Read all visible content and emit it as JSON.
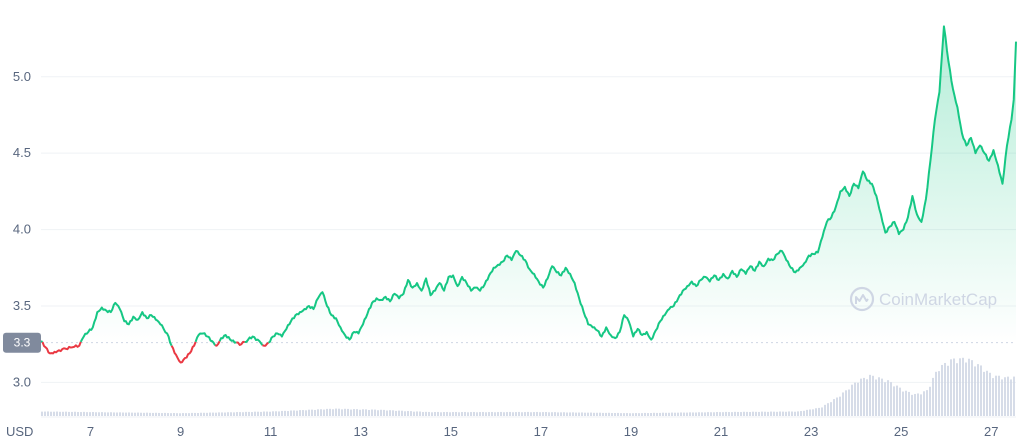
{
  "watermark": "CoinMarketCap",
  "chart_data": {
    "type": "area",
    "title": "",
    "xlabel": "",
    "ylabel": "",
    "currency_label": "USD",
    "ylim": [
      2.78,
      5.45
    ],
    "y_ticks": [
      3.0,
      3.5,
      4.0,
      4.5,
      5.0
    ],
    "x_range": [
      5.9,
      27.55
    ],
    "x_ticks": [
      {
        "day": 7,
        "label": "7"
      },
      {
        "day": 9,
        "label": "9"
      },
      {
        "day": 11,
        "label": "11"
      },
      {
        "day": 13,
        "label": "13"
      },
      {
        "day": 15,
        "label": "15"
      },
      {
        "day": 17,
        "label": "17"
      },
      {
        "day": 19,
        "label": "19"
      },
      {
        "day": 21,
        "label": "21"
      },
      {
        "day": 23,
        "label": "23"
      },
      {
        "day": 25,
        "label": "25"
      },
      {
        "day": 27,
        "label": "27"
      }
    ],
    "reference_price": 3.26,
    "reference_label": "3.3",
    "grid": true,
    "colors": {
      "up_line": "#16c784",
      "down_line": "#ea3943",
      "area_fill": "#16c784",
      "reference_line": "#cfd6e4",
      "badge_bg": "#808a9d",
      "volume_fill": "#cfd6e4",
      "grid": "#eff2f5",
      "axis_text": "#58667e"
    },
    "series": [
      {
        "kind": "price",
        "points": [
          [
            5.9,
            3.27
          ],
          [
            6.0,
            3.23
          ],
          [
            6.1,
            3.19
          ],
          [
            6.2,
            3.2
          ],
          [
            6.3,
            3.21
          ],
          [
            6.45,
            3.22
          ],
          [
            6.6,
            3.23
          ],
          [
            6.75,
            3.24
          ],
          [
            6.85,
            3.3
          ],
          [
            6.95,
            3.33
          ],
          [
            7.05,
            3.36
          ],
          [
            7.15,
            3.46
          ],
          [
            7.25,
            3.49
          ],
          [
            7.35,
            3.47
          ],
          [
            7.45,
            3.46
          ],
          [
            7.55,
            3.52
          ],
          [
            7.65,
            3.48
          ],
          [
            7.75,
            3.4
          ],
          [
            7.85,
            3.38
          ],
          [
            7.95,
            3.43
          ],
          [
            8.05,
            3.41
          ],
          [
            8.15,
            3.46
          ],
          [
            8.25,
            3.42
          ],
          [
            8.35,
            3.44
          ],
          [
            8.45,
            3.41
          ],
          [
            8.55,
            3.38
          ],
          [
            8.7,
            3.32
          ],
          [
            8.8,
            3.24
          ],
          [
            8.9,
            3.18
          ],
          [
            9.0,
            3.13
          ],
          [
            9.1,
            3.16
          ],
          [
            9.2,
            3.19
          ],
          [
            9.3,
            3.24
          ],
          [
            9.4,
            3.31
          ],
          [
            9.5,
            3.32
          ],
          [
            9.6,
            3.3
          ],
          [
            9.7,
            3.27
          ],
          [
            9.8,
            3.24
          ],
          [
            9.9,
            3.29
          ],
          [
            10.0,
            3.31
          ],
          [
            10.1,
            3.28
          ],
          [
            10.2,
            3.26
          ],
          [
            10.35,
            3.25
          ],
          [
            10.5,
            3.28
          ],
          [
            10.6,
            3.3
          ],
          [
            10.75,
            3.27
          ],
          [
            10.85,
            3.24
          ],
          [
            10.95,
            3.26
          ],
          [
            11.05,
            3.3
          ],
          [
            11.15,
            3.32
          ],
          [
            11.25,
            3.3
          ],
          [
            11.35,
            3.35
          ],
          [
            11.45,
            3.4
          ],
          [
            11.55,
            3.44
          ],
          [
            11.65,
            3.46
          ],
          [
            11.75,
            3.48
          ],
          [
            11.85,
            3.5
          ],
          [
            11.95,
            3.48
          ],
          [
            12.05,
            3.55
          ],
          [
            12.15,
            3.59
          ],
          [
            12.25,
            3.5
          ],
          [
            12.35,
            3.44
          ],
          [
            12.45,
            3.42
          ],
          [
            12.55,
            3.36
          ],
          [
            12.65,
            3.31
          ],
          [
            12.75,
            3.28
          ],
          [
            12.85,
            3.33
          ],
          [
            12.95,
            3.32
          ],
          [
            13.05,
            3.38
          ],
          [
            13.15,
            3.45
          ],
          [
            13.25,
            3.52
          ],
          [
            13.35,
            3.55
          ],
          [
            13.45,
            3.54
          ],
          [
            13.55,
            3.56
          ],
          [
            13.65,
            3.53
          ],
          [
            13.75,
            3.58
          ],
          [
            13.85,
            3.55
          ],
          [
            13.95,
            3.58
          ],
          [
            14.05,
            3.67
          ],
          [
            14.15,
            3.62
          ],
          [
            14.25,
            3.65
          ],
          [
            14.35,
            3.6
          ],
          [
            14.45,
            3.68
          ],
          [
            14.55,
            3.57
          ],
          [
            14.65,
            3.6
          ],
          [
            14.75,
            3.65
          ],
          [
            14.85,
            3.6
          ],
          [
            14.95,
            3.69
          ],
          [
            15.05,
            3.7
          ],
          [
            15.15,
            3.63
          ],
          [
            15.25,
            3.69
          ],
          [
            15.35,
            3.65
          ],
          [
            15.45,
            3.6
          ],
          [
            15.55,
            3.62
          ],
          [
            15.65,
            3.6
          ],
          [
            15.75,
            3.64
          ],
          [
            15.85,
            3.7
          ],
          [
            15.95,
            3.75
          ],
          [
            16.05,
            3.77
          ],
          [
            16.15,
            3.79
          ],
          [
            16.25,
            3.83
          ],
          [
            16.35,
            3.8
          ],
          [
            16.45,
            3.86
          ],
          [
            16.55,
            3.83
          ],
          [
            16.65,
            3.8
          ],
          [
            16.75,
            3.74
          ],
          [
            16.85,
            3.71
          ],
          [
            16.95,
            3.66
          ],
          [
            17.05,
            3.62
          ],
          [
            17.15,
            3.68
          ],
          [
            17.25,
            3.76
          ],
          [
            17.35,
            3.72
          ],
          [
            17.45,
            3.7
          ],
          [
            17.55,
            3.75
          ],
          [
            17.65,
            3.71
          ],
          [
            17.75,
            3.65
          ],
          [
            17.85,
            3.55
          ],
          [
            17.95,
            3.46
          ],
          [
            18.05,
            3.38
          ],
          [
            18.15,
            3.36
          ],
          [
            18.25,
            3.34
          ],
          [
            18.35,
            3.3
          ],
          [
            18.45,
            3.36
          ],
          [
            18.55,
            3.31
          ],
          [
            18.65,
            3.29
          ],
          [
            18.75,
            3.33
          ],
          [
            18.85,
            3.44
          ],
          [
            18.95,
            3.4
          ],
          [
            19.05,
            3.3
          ],
          [
            19.15,
            3.35
          ],
          [
            19.25,
            3.31
          ],
          [
            19.35,
            3.33
          ],
          [
            19.45,
            3.28
          ],
          [
            19.55,
            3.34
          ],
          [
            19.65,
            3.4
          ],
          [
            19.75,
            3.44
          ],
          [
            19.85,
            3.48
          ],
          [
            19.95,
            3.5
          ],
          [
            20.05,
            3.55
          ],
          [
            20.15,
            3.6
          ],
          [
            20.25,
            3.63
          ],
          [
            20.35,
            3.66
          ],
          [
            20.45,
            3.63
          ],
          [
            20.55,
            3.67
          ],
          [
            20.65,
            3.69
          ],
          [
            20.75,
            3.66
          ],
          [
            20.85,
            3.7
          ],
          [
            20.95,
            3.67
          ],
          [
            21.05,
            3.71
          ],
          [
            21.15,
            3.68
          ],
          [
            21.25,
            3.73
          ],
          [
            21.35,
            3.69
          ],
          [
            21.45,
            3.74
          ],
          [
            21.55,
            3.71
          ],
          [
            21.65,
            3.76
          ],
          [
            21.75,
            3.73
          ],
          [
            21.85,
            3.79
          ],
          [
            21.95,
            3.76
          ],
          [
            22.05,
            3.81
          ],
          [
            22.15,
            3.8
          ],
          [
            22.25,
            3.84
          ],
          [
            22.35,
            3.86
          ],
          [
            22.45,
            3.8
          ],
          [
            22.55,
            3.75
          ],
          [
            22.65,
            3.72
          ],
          [
            22.75,
            3.75
          ],
          [
            22.85,
            3.78
          ],
          [
            22.95,
            3.83
          ],
          [
            23.05,
            3.84
          ],
          [
            23.15,
            3.85
          ],
          [
            23.25,
            3.95
          ],
          [
            23.35,
            4.05
          ],
          [
            23.45,
            4.08
          ],
          [
            23.55,
            4.15
          ],
          [
            23.65,
            4.25
          ],
          [
            23.75,
            4.28
          ],
          [
            23.85,
            4.22
          ],
          [
            23.95,
            4.3
          ],
          [
            24.05,
            4.27
          ],
          [
            24.15,
            4.38
          ],
          [
            24.25,
            4.32
          ],
          [
            24.35,
            4.3
          ],
          [
            24.45,
            4.22
          ],
          [
            24.55,
            4.1
          ],
          [
            24.65,
            3.98
          ],
          [
            24.75,
            4.02
          ],
          [
            24.85,
            4.05
          ],
          [
            24.95,
            3.97
          ],
          [
            25.05,
            4.0
          ],
          [
            25.15,
            4.08
          ],
          [
            25.25,
            4.22
          ],
          [
            25.35,
            4.1
          ],
          [
            25.45,
            4.05
          ],
          [
            25.55,
            4.2
          ],
          [
            25.65,
            4.45
          ],
          [
            25.75,
            4.72
          ],
          [
            25.85,
            4.9
          ],
          [
            25.95,
            5.33
          ],
          [
            26.05,
            5.1
          ],
          [
            26.15,
            4.92
          ],
          [
            26.25,
            4.8
          ],
          [
            26.35,
            4.63
          ],
          [
            26.45,
            4.55
          ],
          [
            26.55,
            4.6
          ],
          [
            26.65,
            4.5
          ],
          [
            26.75,
            4.55
          ],
          [
            26.85,
            4.5
          ],
          [
            26.95,
            4.45
          ],
          [
            27.05,
            4.52
          ],
          [
            27.15,
            4.42
          ],
          [
            27.25,
            4.3
          ],
          [
            27.35,
            4.55
          ],
          [
            27.45,
            4.72
          ],
          [
            27.5,
            4.85
          ],
          [
            27.55,
            5.23
          ]
        ]
      },
      {
        "kind": "volume",
        "points": [
          [
            5.9,
            0.08
          ],
          [
            9.0,
            0.05
          ],
          [
            11.0,
            0.08
          ],
          [
            12.4,
            0.13
          ],
          [
            13.4,
            0.11
          ],
          [
            14.5,
            0.07
          ],
          [
            17.0,
            0.07
          ],
          [
            19.0,
            0.05
          ],
          [
            21.0,
            0.07
          ],
          [
            22.7,
            0.08
          ],
          [
            23.2,
            0.15
          ],
          [
            23.6,
            0.35
          ],
          [
            24.0,
            0.62
          ],
          [
            24.3,
            0.72
          ],
          [
            24.7,
            0.62
          ],
          [
            25.05,
            0.45
          ],
          [
            25.3,
            0.38
          ],
          [
            25.55,
            0.45
          ],
          [
            25.8,
            0.85
          ],
          [
            26.1,
            1.0
          ],
          [
            26.45,
            1.02
          ],
          [
            26.75,
            0.88
          ],
          [
            27.0,
            0.72
          ],
          [
            27.3,
            0.68
          ],
          [
            27.55,
            0.7
          ]
        ]
      }
    ]
  }
}
